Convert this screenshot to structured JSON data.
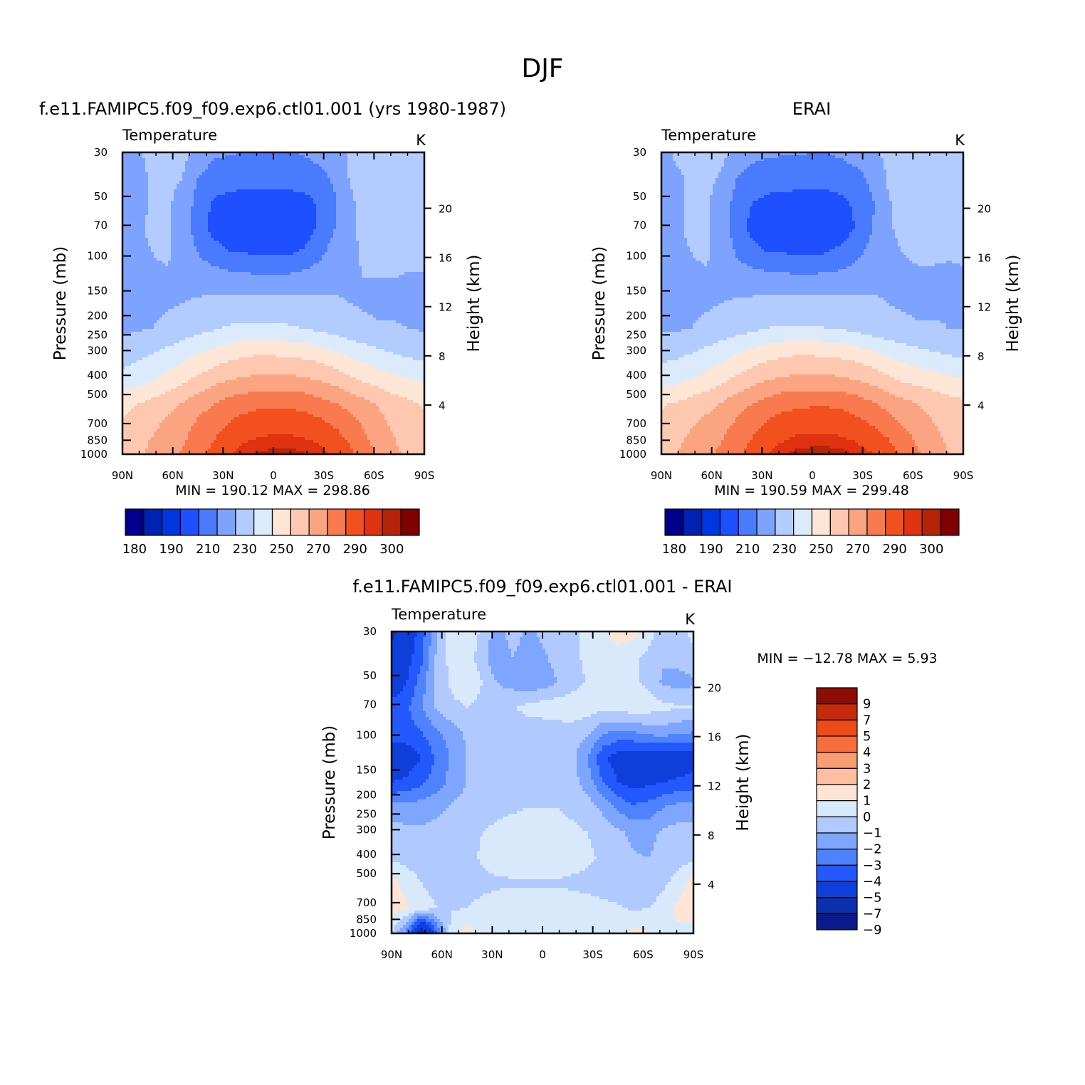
{
  "figure": {
    "title": "DJF"
  },
  "panel_labels": {
    "variable": "Temperature",
    "units": "K",
    "y_label_left": "Pressure  (mb)",
    "y_label_right": "Height  (km)"
  },
  "colors": {
    "abs_levels": [
      "#00008c",
      "#0022b0",
      "#0036e0",
      "#1e50ff",
      "#4a7bff",
      "#7ea3ff",
      "#b2ccff",
      "#dbebfc",
      "#fee6d6",
      "#fdc7b0",
      "#fba482",
      "#f97a4e",
      "#f2501e",
      "#de3210",
      "#b52308",
      "#800000"
    ],
    "diff_levels": [
      "#0d1a8c",
      "#0c2fae",
      "#0f3fdb",
      "#2358ff",
      "#4e82ff",
      "#7ea6ff",
      "#b0caff",
      "#d8e9fb",
      "#fde4d4",
      "#fcbfa2",
      "#f99d73",
      "#f56f3e",
      "#ee4b18",
      "#c52a0b",
      "#8d0c04"
    ]
  },
  "chart_data": [
    {
      "type": "heatmap",
      "panel": "model",
      "title": "f.e11.FAMIPC5.f09_f09.exp6.ctl01.001 (yrs 1980-1987)",
      "x_ticks": [
        "90N",
        "60N",
        "30N",
        "0",
        "30S",
        "60S",
        "90S"
      ],
      "y_ticks": [
        "30",
        "50",
        "70",
        "100",
        "150",
        "200",
        "250",
        "300",
        "400",
        "500",
        "700",
        "850",
        "1000"
      ],
      "y_ticks_right": [
        "20",
        "16",
        "12",
        "8",
        "4"
      ],
      "stats": "MIN =  190.12   MAX =  298.86",
      "colorbar_labels": [
        "180",
        "190",
        "210",
        "230",
        "250",
        "270",
        "290",
        "300"
      ],
      "field": [
        [
          217,
          219,
          222,
          222,
          222,
          219,
          212,
          211,
          210,
          210,
          209,
          209,
          211,
          214,
          217,
          220,
          222,
          225,
          226,
          226,
          227
        ],
        [
          215,
          218,
          221,
          222,
          220,
          210,
          205,
          204,
          203,
          203,
          203,
          203,
          204,
          206,
          212,
          220,
          224,
          227,
          228,
          228,
          229
        ],
        [
          214,
          218,
          221,
          221,
          217,
          206,
          199,
          197,
          197,
          197,
          197,
          197,
          197,
          201,
          208,
          218,
          223,
          226,
          227,
          228,
          228
        ],
        [
          217,
          219,
          221,
          221,
          215,
          205,
          197,
          196,
          195,
          195,
          195,
          195,
          195,
          201,
          209,
          218,
          222,
          224,
          225,
          226,
          226
        ],
        [
          218,
          219,
          220,
          221,
          217,
          210,
          204,
          200,
          200,
          199,
          199,
          199,
          201,
          207,
          214,
          218,
          221,
          223,
          223,
          223,
          223
        ],
        [
          217,
          218,
          219,
          219,
          218,
          217,
          216,
          214,
          213,
          212,
          212,
          212,
          214,
          216,
          218,
          219,
          220,
          220,
          220,
          219,
          219
        ],
        [
          216,
          217,
          218,
          219,
          220,
          221,
          222,
          223,
          224,
          224,
          224,
          224,
          223,
          222,
          221,
          220,
          219,
          218,
          218,
          217,
          217
        ],
        [
          218,
          219,
          220,
          222,
          225,
          227,
          229,
          231,
          232,
          232,
          232,
          231,
          230,
          228,
          226,
          224,
          222,
          221,
          221,
          220,
          219
        ],
        [
          225,
          227,
          230,
          233,
          236,
          240,
          243,
          246,
          248,
          249,
          249,
          248,
          247,
          245,
          242,
          238,
          235,
          232,
          230,
          228,
          226
        ],
        [
          233,
          236,
          239,
          243,
          247,
          252,
          256,
          259,
          261,
          262,
          262,
          262,
          261,
          259,
          256,
          252,
          248,
          245,
          242,
          240,
          238
        ],
        [
          247,
          250,
          253,
          257,
          261,
          266,
          270,
          274,
          276,
          278,
          278,
          278,
          277,
          274,
          271,
          267,
          263,
          259,
          255,
          252,
          249
        ],
        [
          252,
          255,
          259,
          263,
          267,
          273,
          277,
          282,
          286,
          287,
          288,
          288,
          287,
          285,
          281,
          276,
          270,
          264,
          259,
          255,
          252
        ],
        [
          255,
          258,
          263,
          267,
          271,
          277,
          283,
          289,
          293,
          296,
          297,
          297,
          296,
          293,
          289,
          283,
          275,
          268,
          262,
          258,
          255
        ]
      ]
    },
    {
      "type": "heatmap",
      "panel": "obs",
      "title": "ERAI",
      "x_ticks": [
        "90N",
        "60N",
        "30N",
        "0",
        "30S",
        "60S",
        "90S"
      ],
      "y_ticks": [
        "30",
        "50",
        "70",
        "100",
        "150",
        "200",
        "250",
        "300",
        "400",
        "500",
        "700",
        "850",
        "1000"
      ],
      "y_ticks_right": [
        "20",
        "16",
        "12",
        "8",
        "4"
      ],
      "stats": "MIN =  190.59   MAX =  299.48",
      "colorbar_labels": [
        "180",
        "190",
        "210",
        "230",
        "250",
        "270",
        "290",
        "300"
      ],
      "field": [
        [
          218,
          221,
          223,
          222,
          222,
          219,
          214,
          212,
          211,
          211,
          210,
          210,
          212,
          215,
          218,
          222,
          225,
          227,
          228,
          229,
          229
        ],
        [
          217,
          219,
          221,
          222,
          219,
          210,
          205,
          204,
          204,
          203,
          203,
          203,
          205,
          207,
          213,
          221,
          225,
          227,
          228,
          228,
          229
        ],
        [
          216,
          219,
          221,
          221,
          216,
          206,
          200,
          198,
          197,
          197,
          197,
          197,
          198,
          202,
          209,
          219,
          224,
          226,
          227,
          227,
          228
        ],
        [
          217,
          219,
          221,
          221,
          215,
          205,
          197,
          196,
          196,
          195,
          195,
          196,
          196,
          201,
          210,
          219,
          222,
          223,
          224,
          225,
          225
        ],
        [
          218,
          219,
          220,
          221,
          217,
          209,
          203,
          200,
          200,
          199,
          199,
          200,
          202,
          208,
          214,
          218,
          220,
          221,
          221,
          221,
          221
        ],
        [
          218,
          218,
          219,
          219,
          218,
          216,
          215,
          214,
          213,
          212,
          212,
          213,
          214,
          216,
          218,
          219,
          219,
          219,
          219,
          218,
          219
        ],
        [
          217,
          218,
          218,
          219,
          220,
          221,
          222,
          223,
          224,
          224,
          224,
          224,
          223,
          222,
          221,
          220,
          219,
          218,
          218,
          219,
          220
        ],
        [
          219,
          219,
          220,
          222,
          224,
          226,
          228,
          230,
          231,
          231,
          231,
          230,
          229,
          227,
          225,
          223,
          222,
          221,
          221,
          220,
          220
        ],
        [
          227,
          228,
          230,
          233,
          236,
          240,
          243,
          246,
          248,
          249,
          249,
          248,
          247,
          245,
          242,
          238,
          235,
          233,
          231,
          229,
          228
        ],
        [
          235,
          237,
          240,
          243,
          247,
          252,
          256,
          259,
          261,
          262,
          262,
          262,
          261,
          259,
          256,
          252,
          248,
          246,
          244,
          242,
          240
        ],
        [
          249,
          251,
          254,
          257,
          261,
          266,
          270,
          274,
          277,
          278,
          279,
          279,
          278,
          275,
          271,
          267,
          263,
          260,
          257,
          254,
          252
        ],
        [
          254,
          257,
          260,
          264,
          268,
          273,
          278,
          283,
          286,
          288,
          288,
          288,
          287,
          285,
          281,
          277,
          271,
          266,
          261,
          258,
          255
        ],
        [
          257,
          260,
          264,
          268,
          272,
          278,
          284,
          290,
          294,
          297,
          298,
          298,
          297,
          294,
          290,
          285,
          278,
          271,
          265,
          260,
          257
        ]
      ]
    },
    {
      "type": "heatmap",
      "panel": "difference",
      "title": "f.e11.FAMIPC5.f09_f09.exp6.ctl01.001 - ERAI",
      "x_ticks": [
        "90N",
        "60N",
        "30N",
        "0",
        "30S",
        "60S",
        "90S"
      ],
      "y_ticks": [
        "30",
        "50",
        "70",
        "100",
        "150",
        "200",
        "250",
        "300",
        "400",
        "500",
        "700",
        "850",
        "1000"
      ],
      "y_ticks_right": [
        "20",
        "16",
        "12",
        "8",
        "4"
      ],
      "stats": "MIN = −12.78   MAX =    5.93",
      "colorbar_labels": [
        "9",
        "7",
        "5",
        "4",
        "3",
        "2",
        "1",
        "0",
        "−1",
        "−2",
        "−3",
        "−4",
        "−5",
        "−7",
        "−9"
      ],
      "field": [
        [
          -7.5,
          -6,
          -4.5,
          -2,
          -0.5,
          -0.3,
          -1.2,
          -2.5,
          -1.5,
          -2.2,
          -1.8,
          -1.2,
          -1.5,
          -0.4,
          -0.2,
          0.6,
          0.4,
          -0.6,
          -1.5,
          -1.2,
          -0.8
        ],
        [
          -6.5,
          -5.5,
          -4.2,
          -1.8,
          -0.6,
          -0.5,
          -1.5,
          -3,
          -2,
          -2.5,
          -2.2,
          -1.6,
          -1.2,
          -0.8,
          -0.6,
          -0.5,
          -0.8,
          -1.2,
          -1.8,
          -1.5,
          -1.2
        ],
        [
          -6,
          -5,
          -3.5,
          -1.5,
          -0.8,
          -0.4,
          -1,
          -2,
          -2.4,
          -2.8,
          -2.6,
          -2,
          -1.4,
          -0.9,
          -0.6,
          -0.6,
          -0.8,
          -1.2,
          -2.2,
          -2.5,
          -2.2
        ],
        [
          -4.5,
          -4.2,
          -3,
          -1.8,
          -1.2,
          -1,
          -1.2,
          -1.5,
          -1.1,
          -0.7,
          -0.5,
          -0.4,
          -0.4,
          -0.5,
          -0.6,
          -0.4,
          -0.4,
          -0.5,
          -0.7,
          -0.9,
          -1
        ],
        [
          -4.3,
          -4.5,
          -4,
          -3.2,
          -2.5,
          -1.8,
          -1.4,
          -1.3,
          -1.4,
          -1.5,
          -1.6,
          -1.5,
          -1.4,
          -1.8,
          -2.8,
          -3.2,
          -3,
          -2.6,
          -2.5,
          -2.8,
          -3
        ],
        [
          -5.8,
          -5.6,
          -5,
          -3.8,
          -2.8,
          -2,
          -1.5,
          -1.3,
          -1.3,
          -1.2,
          -1.2,
          -1.3,
          -1.8,
          -3,
          -4.8,
          -5.5,
          -5.8,
          -6,
          -5.8,
          -5.8,
          -5.5
        ],
        [
          -5,
          -4.8,
          -4.2,
          -3.5,
          -2.6,
          -2,
          -1.6,
          -1.4,
          -1.3,
          -1.3,
          -1.2,
          -1.3,
          -1.6,
          -2.5,
          -4,
          -5,
          -5.5,
          -5.2,
          -5,
          -4.8,
          -4.6
        ],
        [
          -2.6,
          -2.6,
          -2.5,
          -2.2,
          -1.9,
          -1.6,
          -1.4,
          -1.2,
          -1.1,
          -1,
          -1,
          -1,
          -1.2,
          -1.5,
          -2.2,
          -3.2,
          -3.8,
          -3.6,
          -3,
          -2.6,
          -2.6
        ],
        [
          -1.5,
          -1.7,
          -1.8,
          -1.7,
          -1.6,
          -1.3,
          -1,
          -0.8,
          -0.7,
          -0.7,
          -0.7,
          -0.7,
          -0.8,
          -1,
          -1.4,
          -1.8,
          -2.2,
          -2.4,
          -1.8,
          -1.6,
          -1.6
        ],
        [
          -1.2,
          -1.4,
          -1.5,
          -1.6,
          -1.5,
          -1.2,
          -0.9,
          -0.7,
          -0.6,
          -0.5,
          -0.5,
          -0.5,
          -0.6,
          -0.8,
          -1.2,
          -1.6,
          -1.9,
          -2,
          -1.6,
          -1.4,
          -1.3
        ],
        [
          0.4,
          -0.4,
          -1,
          -1.3,
          -1.4,
          -1.3,
          -1.2,
          -1.1,
          -1.1,
          -1.1,
          -1.1,
          -1.1,
          -1.2,
          -1.3,
          -1.5,
          -1.6,
          -1.8,
          -1.6,
          -1.2,
          -0.6,
          0.5
        ],
        [
          0.5,
          0.2,
          -0.6,
          -1,
          -1.1,
          -1,
          -0.8,
          -0.7,
          -0.6,
          -0.5,
          -0.5,
          -0.5,
          -0.5,
          -0.6,
          -0.7,
          -0.9,
          -1.1,
          -1,
          -0.6,
          0.3,
          0.7
        ],
        [
          -1,
          -3.5,
          -9,
          -4,
          -0.5,
          0.4,
          -0.2,
          -0.4,
          -0.5,
          -0.4,
          -0.4,
          -0.5,
          -0.6,
          -0.7,
          -0.8,
          -0.2,
          0.3,
          0.1,
          -0.4,
          -0.2,
          -0.5
        ]
      ]
    }
  ]
}
